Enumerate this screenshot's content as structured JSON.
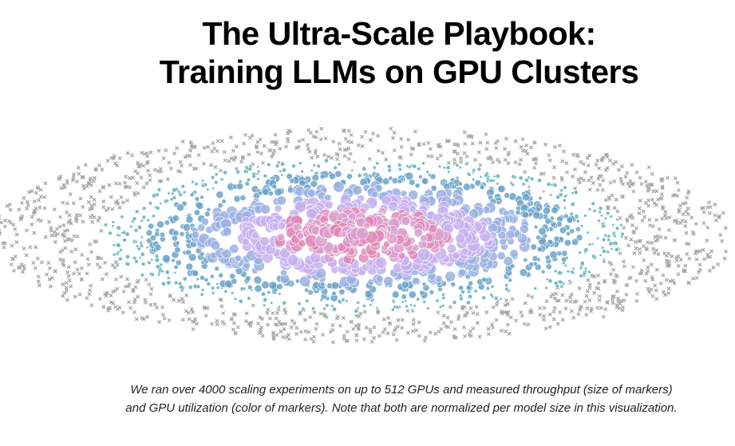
{
  "header": {
    "title_lines": [
      "The Ultra-Scale Playbook:",
      "Training LLMs on GPU Clusters"
    ]
  },
  "caption": {
    "lines": [
      "We ran over 4000 scaling experiments on up to 512 GPUs and measured throughput (size of markers)",
      "and GPU utilization (color of markers). Note that both are normalized per model size in this visualization."
    ]
  }
}
